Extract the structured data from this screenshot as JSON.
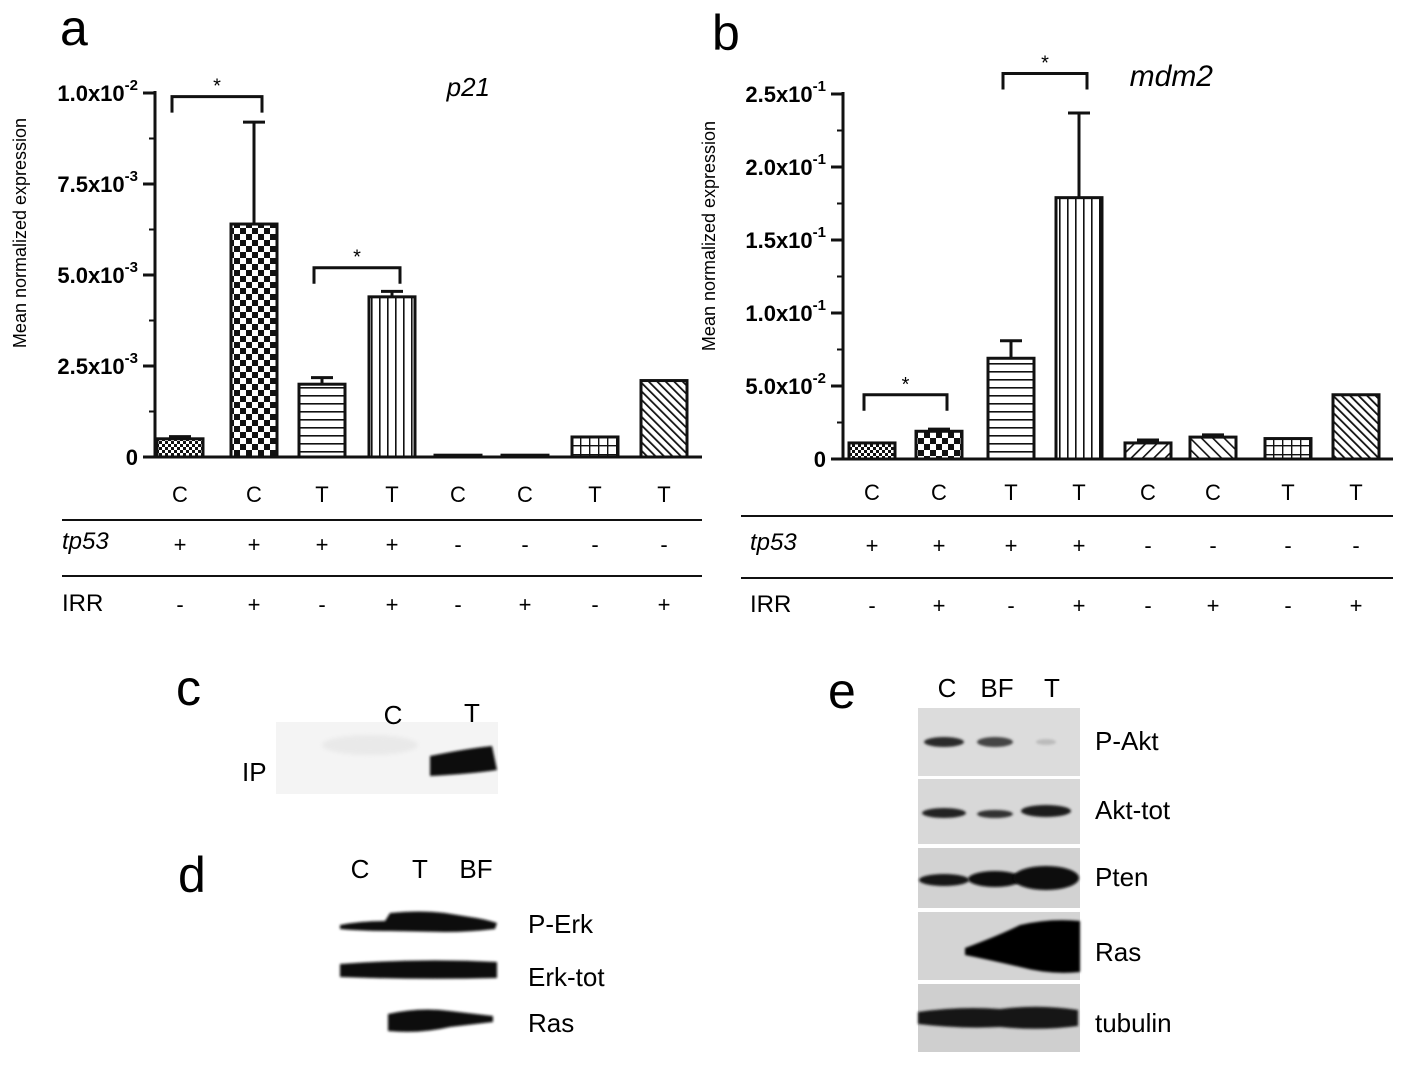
{
  "panels": {
    "a": "a",
    "b": "b",
    "c": "c",
    "d": "d",
    "e": "e"
  },
  "chart_data": [
    {
      "id": "a",
      "type": "bar",
      "title": "p21",
      "ylabel": "Mean normalized expression",
      "ylim": [
        0,
        0.01
      ],
      "yticks": [
        {
          "value": 0,
          "mant": "0",
          "exp": ""
        },
        {
          "value": 0.0025,
          "mant": "2.5x10",
          "exp": "-3"
        },
        {
          "value": 0.005,
          "mant": "5.0x10",
          "exp": "-3"
        },
        {
          "value": 0.0075,
          "mant": "7.5x10",
          "exp": "-3"
        },
        {
          "value": 0.01,
          "mant": "1.0x10",
          "exp": "-2"
        }
      ],
      "categories": [
        "C",
        "C",
        "T",
        "T",
        "C",
        "C",
        "T",
        "T"
      ],
      "tp53": [
        "+",
        "+",
        "+",
        "+",
        "-",
        "-",
        "-",
        "-"
      ],
      "irr": [
        "-",
        "+",
        "-",
        "+",
        "-",
        "+",
        "-",
        "+"
      ],
      "values": [
        0.0005,
        0.0064,
        0.002,
        0.0044,
        5e-05,
        5e-05,
        0.00055,
        0.0021
      ],
      "errors": [
        6e-05,
        0.0028,
        0.00018,
        0.00015,
        0,
        0,
        0,
        0
      ],
      "patterns": [
        "check-small",
        "check",
        "hlines",
        "vlines",
        "diag",
        "diag",
        "grid",
        "diag-dense"
      ],
      "significance": [
        {
          "from": 0,
          "to": 1,
          "label": "*",
          "level": 0.0099
        },
        {
          "from": 2,
          "to": 3,
          "label": "*",
          "level": 0.0052
        }
      ],
      "row_labels": {
        "tp53": "tp53",
        "irr": "IRR"
      }
    },
    {
      "id": "b",
      "type": "bar",
      "title": "mdm2",
      "ylabel": "Mean normalized expression",
      "ylim": [
        0,
        0.25
      ],
      "yticks": [
        {
          "value": 0.05,
          "mant": "5.0x10",
          "exp": "-2"
        },
        {
          "value": 0.1,
          "mant": "1.0x10",
          "exp": "-1"
        },
        {
          "value": 0.15,
          "mant": "1.5x10",
          "exp": "-1"
        },
        {
          "value": 0.2,
          "mant": "2.0x10",
          "exp": "-1"
        },
        {
          "value": 0.25,
          "mant": "2.5x10",
          "exp": "-1"
        }
      ],
      "zero_label": "0",
      "categories": [
        "C",
        "C",
        "T",
        "T",
        "C",
        "C",
        "T",
        "T"
      ],
      "tp53": [
        "+",
        "+",
        "+",
        "+",
        "-",
        "-",
        "-",
        "-"
      ],
      "irr": [
        "-",
        "+",
        "-",
        "+",
        "-",
        "+",
        "-",
        "+"
      ],
      "values": [
        0.011,
        0.019,
        0.069,
        0.179,
        0.011,
        0.015,
        0.014,
        0.044
      ],
      "errors": [
        0,
        0.0015,
        0.012,
        0.058,
        0.002,
        0.0015,
        0,
        0
      ],
      "patterns": [
        "check-small",
        "check",
        "hlines",
        "vlines",
        "diag",
        "diag-rev",
        "grid",
        "diag-dense"
      ],
      "significance": [
        {
          "from": 0,
          "to": 1,
          "label": "*",
          "level": 0.044
        },
        {
          "from": 2,
          "to": 3,
          "label": "*",
          "level": 0.264
        }
      ],
      "row_labels": {
        "tp53": "tp53",
        "irr": "IRR"
      }
    }
  ],
  "blots": {
    "c": {
      "lanes": [
        "C",
        "T"
      ],
      "rows": [
        "IP"
      ]
    },
    "d": {
      "lanes": [
        "C",
        "T",
        "BF"
      ],
      "rows": [
        "P-Erk",
        "Erk-tot",
        "Ras"
      ]
    },
    "e": {
      "lanes": [
        "C",
        "BF",
        "T"
      ],
      "rows": [
        "P-Akt",
        "Akt-tot",
        "Pten",
        "Ras",
        "tubulin"
      ]
    }
  }
}
